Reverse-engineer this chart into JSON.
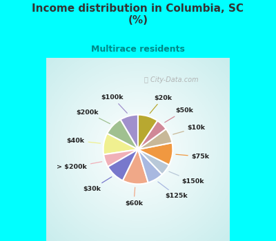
{
  "title": "Income distribution in Columbia, SC\n(%)",
  "subtitle": "Multirace residents",
  "title_color": "#333333",
  "subtitle_color": "#008888",
  "background_top": "#00FFFF",
  "watermark": "City-Data.com",
  "labels": [
    "$100k",
    "$200k",
    "$40k",
    "> $200k",
    "$30k",
    "$60k",
    "$125k",
    "$150k",
    "$75k",
    "$10k",
    "$50k",
    "$20k"
  ],
  "values": [
    8.5,
    9.0,
    10.0,
    6.0,
    9.5,
    12.0,
    7.5,
    5.5,
    10.5,
    7.0,
    5.5,
    9.5
  ],
  "colors": [
    "#a090cc",
    "#a0c090",
    "#f0f090",
    "#f0b0b8",
    "#7878cc",
    "#f0a888",
    "#a8b8e0",
    "#b8c8d8",
    "#f09840",
    "#c8b898",
    "#d08898",
    "#b8a830"
  ],
  "startangle": 90,
  "figsize": [
    4.0,
    3.5
  ],
  "dpi": 100
}
